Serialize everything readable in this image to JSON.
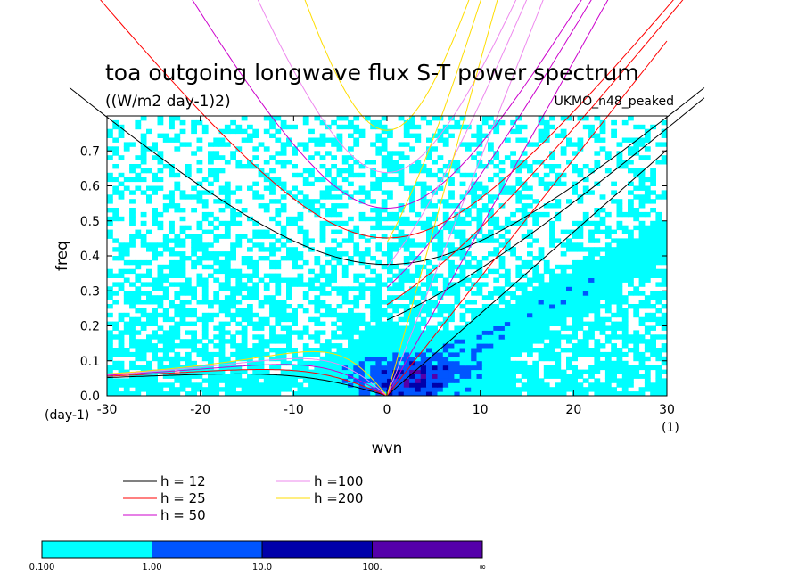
{
  "chart_data": {
    "type": "heatmap",
    "title": "toa outgoing longwave flux S-T power spectrum",
    "units": "((W/m2 day-1)2)",
    "model": "UKMO_n48_peaked",
    "xlabel": "wvn",
    "ylabel": "freq",
    "x_unit": "(1)",
    "y_unit": "(day-1)",
    "xlim": [
      -30,
      30
    ],
    "ylim": [
      0,
      0.8
    ],
    "xticks": [
      -30,
      -20,
      -10,
      0,
      10,
      20,
      30
    ],
    "xtick_labels": [
      "-30",
      "-20",
      "-10",
      "0",
      "10",
      "20",
      "30"
    ],
    "yticks": [
      0,
      0.1,
      0.2,
      0.3,
      0.4,
      0.5,
      0.6,
      0.7
    ],
    "ytick_labels": [
      "0.0",
      "0.1",
      "0.2",
      "0.3",
      "0.4",
      "0.5",
      "0.6",
      "0.7"
    ],
    "dispersion_curves": [
      {
        "label": "h = 12",
        "h": 12,
        "color": "#000000"
      },
      {
        "label": "h = 25",
        "h": 25,
        "color": "#ff0000"
      },
      {
        "label": "h = 50",
        "h": 50,
        "color": "#cc00cc"
      },
      {
        "label": "h =100",
        "h": 100,
        "color": "#ee88ee"
      },
      {
        "label": "h =200",
        "h": 200,
        "color": "#ffdd00"
      }
    ],
    "colorbar": {
      "levels": [
        "0.100",
        "1.00",
        "10.0",
        "100.",
        "∞"
      ],
      "colors": [
        "#00ffff",
        "#0055ff",
        "#0000aa",
        "#5500aa"
      ]
    }
  }
}
